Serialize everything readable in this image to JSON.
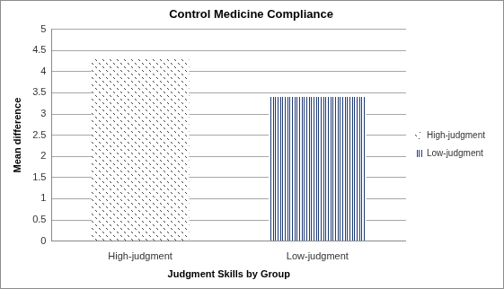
{
  "chart_data": {
    "type": "bar",
    "title": "Control Medicine Compliance",
    "x_label": "Judgment Skills by Group",
    "y_label": "Mean difference",
    "categories": [
      "High-judgment",
      "Low-judgment"
    ],
    "series": [
      {
        "name": "High-judgment",
        "color": "#404040",
        "values": [
          4.3,
          null
        ]
      },
      {
        "name": "Low-judgment",
        "color": "#1f3b73",
        "values": [
          null,
          3.4
        ]
      }
    ],
    "ylim": [
      0,
      5
    ],
    "yticks": [
      0,
      0.5,
      1,
      1.5,
      2,
      2.5,
      3,
      3.5,
      4,
      4.5,
      5
    ],
    "grid": true,
    "legend": "right"
  }
}
